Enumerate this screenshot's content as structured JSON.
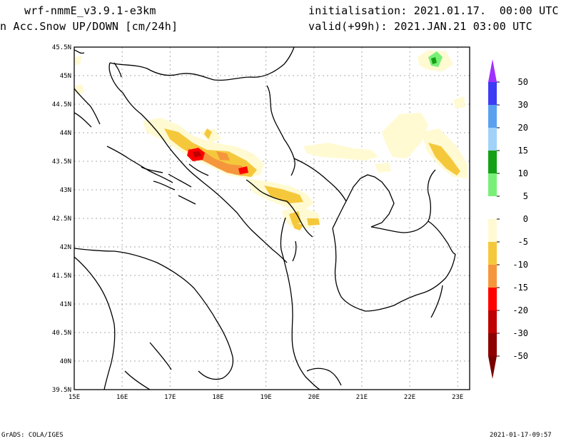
{
  "header": {
    "model": "wrf-nmmE_v3.9.1-e3km",
    "variable": "n Acc.Snow UP/DOWN [cm/24h]",
    "init": "initialisation: 2021.01.17.  00:00 UTC",
    "valid": "valid(+99h): 2021.JAN.21 03:00 UTC"
  },
  "map": {
    "lat_labels": [
      "45.5N",
      "45N",
      "44.5N",
      "44N",
      "43.5N",
      "43N",
      "42.5N",
      "42N",
      "41.5N",
      "41N",
      "40.5N",
      "40N",
      "39.5N"
    ],
    "lon_labels": [
      "15E",
      "16E",
      "17E",
      "18E",
      "19E",
      "20E",
      "21E",
      "22E",
      "23E"
    ]
  },
  "colorbar": {
    "labels": [
      "50",
      "30",
      "20",
      "15",
      "10",
      "5",
      "0",
      "-5",
      "-10",
      "-15",
      "-20",
      "-30",
      "-50"
    ],
    "colors": [
      "#9a22ff",
      "#3c3cf5",
      "#5aa0f0",
      "#a0d2fa",
      "#14a014",
      "#78f078",
      "#ffffff",
      "#fffad2",
      "#f5c83c",
      "#f5963c",
      "#ff0000",
      "#be0000",
      "#8c0000"
    ],
    "top_color": "#a030ff",
    "bottom_color": "#7a0000"
  },
  "footer": {
    "left": "GrADS: COLA/IGES",
    "right": "2021-01-17-09:57"
  }
}
